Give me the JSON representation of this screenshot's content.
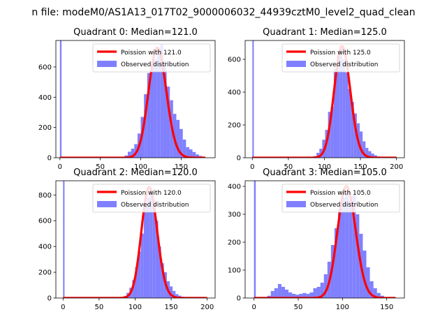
{
  "figure": {
    "suptitle": "n file: modeM0/AS1A13_017T02_9000006032_44939cztM0_level2_quad_clean"
  },
  "colors": {
    "hist": "#8080ff",
    "poisson": "#ff0000",
    "text": "#000000",
    "frame": "#000000",
    "background": "#ffffff"
  },
  "chart_data": [
    {
      "type": "bar",
      "title": "Quadrant 0: Median=121.0",
      "median": 121.0,
      "xlim": [
        -5,
        192
      ],
      "ylim": [
        0,
        775
      ],
      "xticks": [
        0,
        50,
        100,
        150
      ],
      "yticks": [
        0,
        200,
        400,
        600
      ],
      "legend_location": "upper right",
      "series": [
        {
          "name": "Poission with 121.0",
          "kind": "line",
          "mean": 121.0,
          "amplitude": 727
        },
        {
          "name": "Observed distribution",
          "kind": "hist",
          "bins": [
            [
              0,
              2,
              775
            ],
            [
              80,
              84,
              15
            ],
            [
              84,
              88,
              40
            ],
            [
              88,
              92,
              60
            ],
            [
              92,
              96,
              90
            ],
            [
              96,
              100,
              160
            ],
            [
              100,
              104,
              270
            ],
            [
              104,
              108,
              420
            ],
            [
              108,
              112,
              560
            ],
            [
              112,
              116,
              600
            ],
            [
              116,
              120,
              650
            ],
            [
              120,
              124,
              720
            ],
            [
              124,
              128,
              750
            ],
            [
              128,
              132,
              640
            ],
            [
              132,
              136,
              470
            ],
            [
              136,
              140,
              380
            ],
            [
              140,
              144,
              290
            ],
            [
              144,
              148,
              250
            ],
            [
              148,
              152,
              190
            ],
            [
              152,
              156,
              120
            ],
            [
              156,
              160,
              70
            ],
            [
              160,
              164,
              55
            ],
            [
              164,
              168,
              38
            ],
            [
              168,
              172,
              22
            ],
            [
              172,
              176,
              12
            ],
            [
              176,
              180,
              5
            ]
          ]
        }
      ]
    },
    {
      "type": "bar",
      "title": "Quadrant 1: Median=125.0",
      "median": 125.0,
      "xlim": [
        -10,
        211
      ],
      "ylim": [
        0,
        715
      ],
      "xticks": [
        0,
        50,
        100,
        150,
        200
      ],
      "yticks": [
        0,
        200,
        400,
        600
      ],
      "legend_location": "upper right",
      "series": [
        {
          "name": "Poission with 125.0",
          "kind": "line",
          "mean": 125.0,
          "amplitude": 680
        },
        {
          "name": "Observed distribution",
          "kind": "hist",
          "bins": [
            [
              0,
              2,
              715
            ],
            [
              85,
              89,
              10
            ],
            [
              89,
              93,
              30
            ],
            [
              93,
              97,
              55
            ],
            [
              97,
              101,
              110
            ],
            [
              101,
              105,
              170
            ],
            [
              105,
              109,
              280
            ],
            [
              109,
              113,
              310
            ],
            [
              113,
              117,
              540
            ],
            [
              117,
              121,
              620
            ],
            [
              121,
              125,
              680
            ],
            [
              125,
              129,
              600
            ],
            [
              129,
              133,
              520
            ],
            [
              133,
              137,
              420
            ],
            [
              137,
              141,
              340
            ],
            [
              141,
              145,
              270
            ],
            [
              145,
              149,
              210
            ],
            [
              149,
              153,
              160
            ],
            [
              153,
              157,
              100
            ],
            [
              157,
              161,
              60
            ],
            [
              161,
              165,
              40
            ],
            [
              165,
              169,
              25
            ],
            [
              169,
              173,
              15
            ],
            [
              173,
              177,
              8
            ],
            [
              177,
              181,
              4
            ]
          ]
        }
      ]
    },
    {
      "type": "bar",
      "title": "Quadrant 2: Median=120.0",
      "median": 120.0,
      "xlim": [
        -10,
        211
      ],
      "ylim": [
        0,
        910
      ],
      "xticks": [
        0,
        50,
        100,
        150,
        200
      ],
      "yticks": [
        0,
        200,
        400,
        600,
        800
      ],
      "legend_location": "upper right",
      "series": [
        {
          "name": "Poission with 120.0",
          "kind": "line",
          "mean": 120.0,
          "amplitude": 860
        },
        {
          "name": "Observed distribution",
          "kind": "hist",
          "bins": [
            [
              0,
              2,
              910
            ],
            [
              84,
              88,
              15
            ],
            [
              88,
              92,
              40
            ],
            [
              92,
              96,
              80
            ],
            [
              96,
              100,
              140
            ],
            [
              100,
              104,
              240
            ],
            [
              104,
              108,
              360
            ],
            [
              108,
              112,
              500
            ],
            [
              112,
              116,
              720
            ],
            [
              116,
              120,
              780
            ],
            [
              120,
              124,
              850
            ],
            [
              124,
              128,
              760
            ],
            [
              128,
              132,
              600
            ],
            [
              132,
              136,
              400
            ],
            [
              136,
              140,
              270
            ],
            [
              140,
              144,
              200
            ],
            [
              144,
              148,
              130
            ],
            [
              148,
              152,
              90
            ],
            [
              152,
              156,
              55
            ],
            [
              156,
              160,
              30
            ],
            [
              160,
              164,
              18
            ],
            [
              164,
              168,
              10
            ],
            [
              168,
              172,
              5
            ]
          ]
        }
      ]
    },
    {
      "type": "bar",
      "title": "Quadrant 3: Median=105.0",
      "median": 105.0,
      "xlim": [
        -10,
        170
      ],
      "ylim": [
        0,
        420
      ],
      "xticks": [
        0,
        50,
        100,
        150
      ],
      "yticks": [
        0,
        100,
        200,
        300,
        400
      ],
      "legend_location": "upper right",
      "series": [
        {
          "name": "Poission with 105.0",
          "kind": "line",
          "mean": 105.0,
          "amplitude": 400
        },
        {
          "name": "Observed distribution",
          "kind": "hist",
          "bins": [
            [
              0,
              2,
              420
            ],
            [
              15,
              19,
              8
            ],
            [
              19,
              23,
              25
            ],
            [
              23,
              27,
              35
            ],
            [
              27,
              31,
              50
            ],
            [
              31,
              35,
              40
            ],
            [
              35,
              39,
              30
            ],
            [
              39,
              43,
              20
            ],
            [
              43,
              47,
              15
            ],
            [
              47,
              51,
              12
            ],
            [
              51,
              55,
              15
            ],
            [
              55,
              59,
              18
            ],
            [
              59,
              63,
              15
            ],
            [
              63,
              67,
              20
            ],
            [
              67,
              71,
              35
            ],
            [
              71,
              75,
              40
            ],
            [
              75,
              79,
              55
            ],
            [
              79,
              83,
              85
            ],
            [
              83,
              87,
              130
            ],
            [
              87,
              91,
              190
            ],
            [
              91,
              95,
              250
            ],
            [
              95,
              99,
              320
            ],
            [
              99,
              103,
              360
            ],
            [
              103,
              107,
              380
            ],
            [
              107,
              111,
              350
            ],
            [
              111,
              115,
              370
            ],
            [
              115,
              119,
              300
            ],
            [
              119,
              123,
              230
            ],
            [
              123,
              127,
              170
            ],
            [
              127,
              131,
              110
            ],
            [
              131,
              135,
              60
            ],
            [
              135,
              139,
              35
            ],
            [
              139,
              143,
              18
            ],
            [
              143,
              147,
              8
            ]
          ]
        }
      ]
    }
  ]
}
